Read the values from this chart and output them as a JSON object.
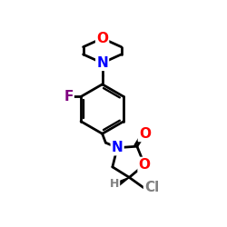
{
  "background_color": "#ffffff",
  "atom_colors": {
    "N": "#0000ff",
    "O": "#ff0000",
    "F": "#800080",
    "Cl": "#808080",
    "H": "#808080",
    "C": "#000000"
  },
  "bond_color": "#000000",
  "bond_width": 2.0,
  "font_size_atoms": 11
}
